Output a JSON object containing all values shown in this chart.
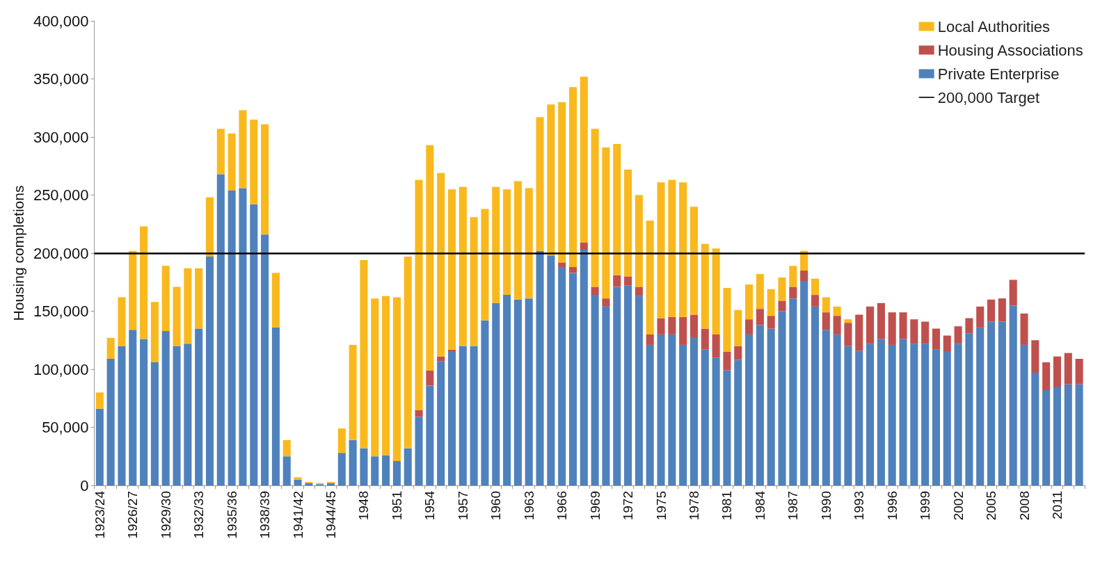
{
  "chart_data": {
    "type": "bar",
    "stacked": true,
    "ylabel": "Housing completions",
    "categories": [
      "1923/24",
      null,
      null,
      "1926/27",
      null,
      null,
      "1929/30",
      null,
      null,
      "1932/33",
      null,
      null,
      "1935/36",
      null,
      null,
      "1938/39",
      null,
      null,
      "1941/42",
      null,
      null,
      "1944/45",
      null,
      null,
      "1948",
      null,
      null,
      "1951",
      null,
      null,
      "1954",
      null,
      null,
      "1957",
      null,
      null,
      "1960",
      null,
      null,
      "1963",
      null,
      null,
      "1966",
      null,
      null,
      "1969",
      null,
      null,
      "1972",
      null,
      null,
      "1975",
      null,
      null,
      "1978",
      null,
      null,
      "1981",
      null,
      null,
      "1984",
      null,
      null,
      "1987",
      null,
      null,
      "1990",
      null,
      null,
      "1993",
      null,
      null,
      "1996",
      null,
      null,
      "1999",
      null,
      null,
      "2002",
      null,
      null,
      "2005",
      null,
      null,
      "2008",
      null,
      null,
      "2011",
      null,
      null
    ],
    "series": [
      {
        "name": "Private Enterprise",
        "color": "#4f81bd",
        "values": [
          66000,
          109000,
          120000,
          134000,
          126000,
          106000,
          133000,
          120000,
          122000,
          135000,
          197000,
          268000,
          254000,
          256000,
          242000,
          216000,
          136000,
          25000,
          5000,
          2000,
          1000,
          2000,
          28000,
          39000,
          32000,
          25000,
          26000,
          21000,
          32000,
          59000,
          86000,
          107000,
          115000,
          120000,
          120000,
          142000,
          157000,
          164000,
          160000,
          161000,
          202000,
          198000,
          188000,
          183000,
          203000,
          164000,
          154000,
          171000,
          172000,
          163000,
          121000,
          130000,
          130000,
          121000,
          127000,
          117000,
          110000,
          99000,
          108000,
          130000,
          138000,
          135000,
          150000,
          161000,
          176000,
          154000,
          134000,
          130000,
          120000,
          116000,
          122000,
          126000,
          121000,
          126000,
          122000,
          122000,
          117000,
          115000,
          122000,
          131000,
          136000,
          141000,
          141000,
          155000,
          121000,
          97000,
          82000,
          85000,
          87000,
          87000
        ]
      },
      {
        "name": "Housing Associations",
        "color": "#c0504d",
        "values": [
          0,
          0,
          0,
          0,
          0,
          0,
          0,
          0,
          0,
          0,
          0,
          0,
          0,
          0,
          0,
          0,
          0,
          0,
          0,
          0,
          0,
          0,
          0,
          0,
          0,
          0,
          0,
          0,
          0,
          6000,
          13000,
          4000,
          2000,
          0,
          0,
          0,
          0,
          0,
          0,
          0,
          0,
          0,
          4000,
          5000,
          6000,
          7000,
          7000,
          10000,
          8000,
          8000,
          9000,
          14000,
          15000,
          24000,
          20000,
          18000,
          20000,
          16000,
          12000,
          13000,
          14000,
          11000,
          9000,
          10000,
          9000,
          10000,
          15000,
          16000,
          20000,
          31000,
          32000,
          31000,
          28000,
          23000,
          21000,
          19000,
          18000,
          14000,
          15000,
          13000,
          18000,
          19000,
          20000,
          22000,
          27000,
          28000,
          24000,
          26000,
          27000,
          22000
        ]
      },
      {
        "name": "Local Authorities",
        "color": "#f9b91e",
        "values": [
          14000,
          18000,
          42000,
          68000,
          97000,
          52000,
          56000,
          51000,
          65000,
          52000,
          51000,
          39000,
          49000,
          67000,
          73000,
          95000,
          47000,
          14000,
          2000,
          1000,
          1000,
          1000,
          21000,
          82000,
          162000,
          136000,
          137000,
          141000,
          165000,
          198000,
          194000,
          158000,
          138000,
          137000,
          111000,
          96000,
          100000,
          91000,
          102000,
          95000,
          115000,
          130000,
          138000,
          155000,
          143000,
          136000,
          130000,
          113000,
          92000,
          79000,
          98000,
          117000,
          118000,
          116000,
          93000,
          73000,
          74000,
          55000,
          31000,
          30000,
          30000,
          23000,
          20000,
          18000,
          17000,
          14000,
          13000,
          8000,
          3000,
          0,
          0,
          0,
          0,
          0,
          0,
          0,
          0,
          0,
          0,
          0,
          0,
          0,
          0,
          0,
          0,
          0,
          0,
          0,
          0,
          0
        ]
      }
    ],
    "ylim": [
      0,
      400000
    ],
    "yticks": [
      0,
      {
        "value": 50000,
        "label": "50,000"
      },
      {
        "value": 100000,
        "label": "100,000"
      },
      {
        "value": 150000,
        "label": "150,000"
      },
      {
        "value": 200000,
        "label": "200,000"
      },
      {
        "value": 250000,
        "label": "250,000"
      },
      {
        "value": 300000,
        "label": "300,000"
      },
      {
        "value": 350000,
        "label": "350,000"
      },
      {
        "value": 400000,
        "label": "400,000"
      }
    ],
    "ref_lines": [
      {
        "axis": "y",
        "value": 200000,
        "label": "200,000 Target",
        "color": "#000000"
      }
    ],
    "legend": "top right",
    "grid": false
  }
}
